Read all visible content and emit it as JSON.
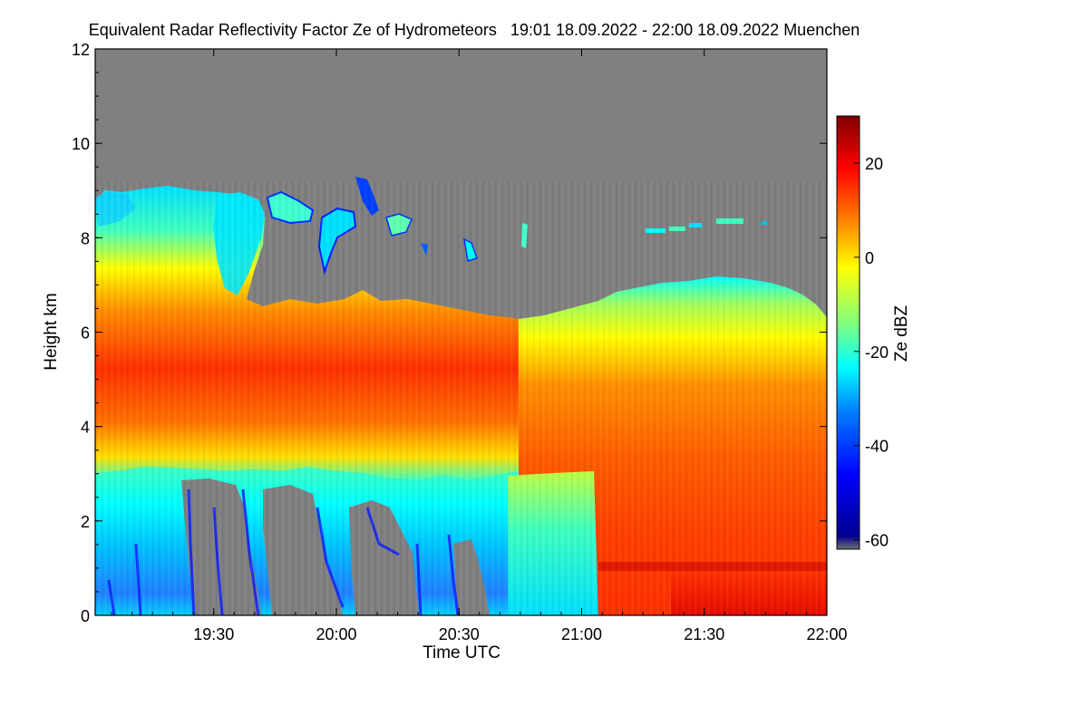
{
  "chart_data": {
    "type": "heatmap",
    "title": "Equivalent Radar Reflectivity Factor Ze of Hydrometeors   19:01 18.09.2022 - 22:00 18.09.2022 Muenchen",
    "xlabel": "Time UTC",
    "ylabel": "Height km",
    "xlim": [
      "19:01",
      "22:00"
    ],
    "ylim": [
      0,
      12
    ],
    "x_ticks": [
      "19:30",
      "20:00",
      "20:30",
      "21:00",
      "21:30",
      "22:00"
    ],
    "y_ticks": [
      0,
      2,
      4,
      6,
      8,
      10,
      12
    ],
    "colorbar": {
      "label": "Ze dBZ",
      "range": [
        -62,
        30
      ],
      "ticks": [
        -60,
        -40,
        -20,
        0,
        20
      ],
      "colormap": [
        "#6f6f6f",
        "#00008f",
        "#0000ff",
        "#0080ff",
        "#00ffff",
        "#80ff80",
        "#ffff00",
        "#ff8000",
        "#ff0000",
        "#800000"
      ]
    },
    "background_color": "#808080",
    "layers": [
      {
        "time_start": "19:01",
        "time_end": "20:47",
        "base_km": 3.1,
        "top_km": 6.5,
        "ze_dbz": 5
      },
      {
        "time_start": "20:47",
        "time_end": "22:00",
        "base_km": 0.0,
        "top_km": 7.0,
        "ze_dbz": 15
      },
      {
        "time_start": "19:01",
        "time_end": "20:47",
        "base_km": 0.0,
        "top_km": 3.0,
        "ze_dbz": -25
      }
    ]
  }
}
